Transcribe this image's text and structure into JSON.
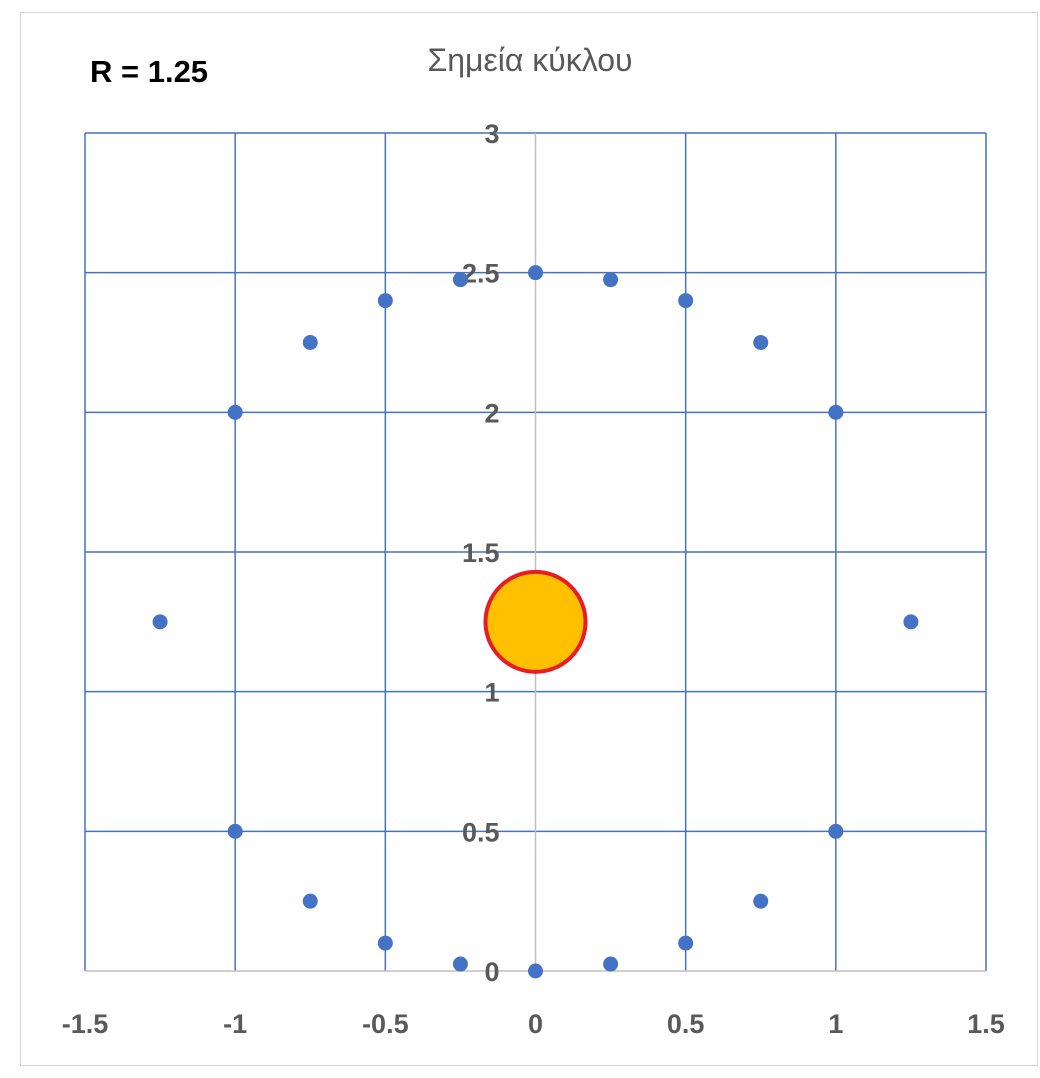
{
  "r_label": "R = 1.25",
  "chart_data": {
    "type": "scatter",
    "title": "Σημεία κύκλου",
    "xlabel": "",
    "ylabel": "",
    "xlim": [
      -1.5,
      1.5
    ],
    "ylim": [
      0,
      3
    ],
    "x_ticks": [
      "-1.5",
      "-1",
      "-0.5",
      "0",
      "0.5",
      "1",
      "1.5"
    ],
    "y_ticks": [
      "0",
      "0.5",
      "1",
      "1.5",
      "2",
      "2.5",
      "3"
    ],
    "grid": true,
    "legend": "none",
    "series": [
      {
        "marker": "circle",
        "color": "#4472c4",
        "points": [
          [
            0,
            0
          ],
          [
            0.25,
            0.025
          ],
          [
            0.5,
            0.1
          ],
          [
            0.75,
            0.25
          ],
          [
            1,
            0.5
          ],
          [
            1.25,
            1.25
          ],
          [
            1,
            2
          ],
          [
            0.75,
            2.25
          ],
          [
            0.5,
            2.4
          ],
          [
            0.25,
            2.475
          ],
          [
            0,
            2.5
          ],
          [
            -0.25,
            2.475
          ],
          [
            -0.5,
            2.4
          ],
          [
            -0.75,
            2.25
          ],
          [
            -1,
            2
          ],
          [
            -1.25,
            1.25
          ],
          [
            -1,
            0.5
          ],
          [
            -0.75,
            0.25
          ],
          [
            -0.5,
            0.1
          ],
          [
            -0.25,
            0.025
          ]
        ]
      },
      {
        "marker": "circle-large",
        "color": "#ffc000",
        "edge_color": "#e81c24",
        "points": [
          [
            0,
            1.25
          ]
        ]
      }
    ]
  }
}
